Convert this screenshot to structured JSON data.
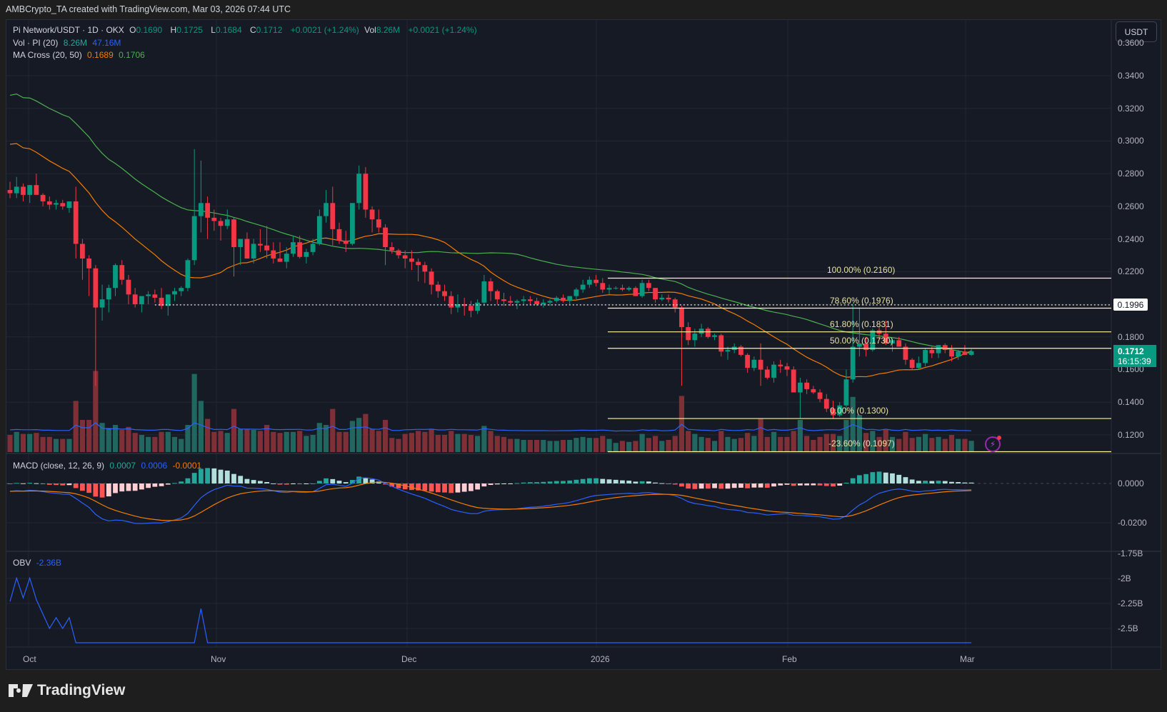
{
  "header": {
    "attribution": "AMBCrypto_TA created with TradingView.com, Mar 03, 2026 07:44 UTC"
  },
  "symbol_legend": {
    "symbol": "Pi Network/USDT · 1D · OKX",
    "o_label": "O",
    "o": "0.1690",
    "h_label": "H",
    "h": "0.1725",
    "l_label": "L",
    "l": "0.1684",
    "c_label": "C",
    "c": "0.1712",
    "change": "+0.0021 (+1.24%)",
    "vol_label": "Vol",
    "vol": "8.26M",
    "vol_change": "+0.0021 (+1.24%)"
  },
  "volume_legend": {
    "label": "Vol · PI (20)",
    "value": "8.26M",
    "ma": "47.16M"
  },
  "ma_legend": {
    "label": "MA Cross (20, 50)",
    "ma20": "0.1689",
    "ma50": "0.1706"
  },
  "macd_legend": {
    "label": "MACD (close, 12, 26, 9)",
    "hist": "0.0007",
    "macd": "0.0006",
    "signal": "-0.0001"
  },
  "obv_legend": {
    "label": "OBV",
    "value": "-2.36B"
  },
  "currency_button": "USDT",
  "price_tags": {
    "dotted_level": "0.1996",
    "last_price": "0.1712",
    "countdown": "16:15:39"
  },
  "price_axis": [
    "0.3600",
    "0.3400",
    "0.3200",
    "0.3000",
    "0.2800",
    "0.2600",
    "0.2400",
    "0.2200",
    "0.1800",
    "0.1600",
    "0.1400",
    "0.1200"
  ],
  "macd_axis": [
    "0.0000",
    "-0.0200"
  ],
  "obv_axis": [
    "-1.75B",
    "-2B",
    "-2.25B",
    "-2.5B"
  ],
  "time_axis": [
    {
      "label": "Oct",
      "x": 40
    },
    {
      "label": "Nov",
      "x": 303
    },
    {
      "label": "Dec",
      "x": 570
    },
    {
      "label": "2026",
      "x": 835
    },
    {
      "label": "Feb",
      "x": 1103
    },
    {
      "label": "Mar",
      "x": 1352
    }
  ],
  "fib_levels": [
    {
      "label": "100.00% (0.2160)",
      "price": 0.216
    },
    {
      "label": "78.60% (0.1976)",
      "price": 0.1976
    },
    {
      "label": "61.80% (0.1831)",
      "price": 0.1831
    },
    {
      "label": "50.00% (0.1730)",
      "price": 0.173
    },
    {
      "label": "0.00% (0.1300)",
      "price": 0.13
    },
    {
      "label": "-23.60% (0.1097)",
      "price": 0.1097
    }
  ],
  "colors": {
    "up": "#089981",
    "down": "#f23645",
    "vol_up": "#22675f",
    "vol_down": "#7f2f36",
    "ma20": "#f57c00",
    "ma50": "#4caf50",
    "macd": "#2962ff",
    "signal": "#f57c00",
    "obv": "#2962ff",
    "fib": "#fff59d",
    "background": "#161a25",
    "grid": "#232733"
  },
  "brand": "TradingView",
  "chart_data": {
    "type": "candlestick",
    "title": "Pi Network/USDT · 1D · OKX",
    "xlabel": "",
    "ylabel": "USDT",
    "x_range": [
      "2025-09-29",
      "2026-03-03"
    ],
    "ylim": [
      0.105,
      0.36
    ],
    "ohlc_start_date": "2025-09-29",
    "ohlc": [
      [
        0.27,
        0.275,
        0.265,
        0.268
      ],
      [
        0.268,
        0.278,
        0.265,
        0.272
      ],
      [
        0.272,
        0.274,
        0.263,
        0.267
      ],
      [
        0.267,
        0.273,
        0.262,
        0.273
      ],
      [
        0.273,
        0.28,
        0.268,
        0.267
      ],
      [
        0.267,
        0.268,
        0.26,
        0.263
      ],
      [
        0.263,
        0.266,
        0.258,
        0.261
      ],
      [
        0.261,
        0.264,
        0.258,
        0.262
      ],
      [
        0.262,
        0.264,
        0.258,
        0.26
      ],
      [
        0.259,
        0.262,
        0.256,
        0.263
      ],
      [
        0.263,
        0.272,
        0.228,
        0.237
      ],
      [
        0.237,
        0.24,
        0.215,
        0.228
      ],
      [
        0.228,
        0.23,
        0.205,
        0.222
      ],
      [
        0.222,
        0.224,
        0.15,
        0.198
      ],
      [
        0.198,
        0.212,
        0.19,
        0.203
      ],
      [
        0.203,
        0.212,
        0.195,
        0.21
      ],
      [
        0.21,
        0.225,
        0.205,
        0.224
      ],
      [
        0.224,
        0.227,
        0.212,
        0.215
      ],
      [
        0.215,
        0.218,
        0.2,
        0.206
      ],
      [
        0.206,
        0.21,
        0.198,
        0.2
      ],
      [
        0.2,
        0.205,
        0.195,
        0.205
      ],
      [
        0.205,
        0.208,
        0.2,
        0.206
      ],
      [
        0.206,
        0.209,
        0.201,
        0.204
      ],
      [
        0.204,
        0.21,
        0.197,
        0.199
      ],
      [
        0.199,
        0.206,
        0.193,
        0.206
      ],
      [
        0.206,
        0.21,
        0.202,
        0.208
      ],
      [
        0.208,
        0.211,
        0.205,
        0.21
      ],
      [
        0.21,
        0.228,
        0.208,
        0.227
      ],
      [
        0.227,
        0.295,
        0.224,
        0.254
      ],
      [
        0.254,
        0.288,
        0.244,
        0.262
      ],
      [
        0.262,
        0.266,
        0.24,
        0.253
      ],
      [
        0.253,
        0.258,
        0.245,
        0.251
      ],
      [
        0.251,
        0.253,
        0.239,
        0.248
      ],
      [
        0.248,
        0.258,
        0.246,
        0.252
      ],
      [
        0.252,
        0.253,
        0.217,
        0.235
      ],
      [
        0.235,
        0.24,
        0.224,
        0.24
      ],
      [
        0.24,
        0.244,
        0.228,
        0.228
      ],
      [
        0.228,
        0.24,
        0.225,
        0.237
      ],
      [
        0.237,
        0.246,
        0.232,
        0.236
      ],
      [
        0.236,
        0.248,
        0.228,
        0.233
      ],
      [
        0.233,
        0.238,
        0.225,
        0.228
      ],
      [
        0.228,
        0.238,
        0.226,
        0.226
      ],
      [
        0.226,
        0.235,
        0.222,
        0.231
      ],
      [
        0.231,
        0.242,
        0.229,
        0.238
      ],
      [
        0.238,
        0.242,
        0.228,
        0.229
      ],
      [
        0.229,
        0.234,
        0.225,
        0.232
      ],
      [
        0.232,
        0.24,
        0.23,
        0.237
      ],
      [
        0.237,
        0.258,
        0.236,
        0.254
      ],
      [
        0.254,
        0.27,
        0.25,
        0.262
      ],
      [
        0.262,
        0.272,
        0.236,
        0.246
      ],
      [
        0.246,
        0.25,
        0.237,
        0.239
      ],
      [
        0.239,
        0.245,
        0.232,
        0.237
      ],
      [
        0.237,
        0.26,
        0.236,
        0.262
      ],
      [
        0.262,
        0.285,
        0.258,
        0.28
      ],
      [
        0.28,
        0.284,
        0.253,
        0.258
      ],
      [
        0.258,
        0.26,
        0.244,
        0.252
      ],
      [
        0.252,
        0.258,
        0.244,
        0.247
      ],
      [
        0.247,
        0.249,
        0.224,
        0.235
      ],
      [
        0.235,
        0.238,
        0.231,
        0.233
      ],
      [
        0.233,
        0.234,
        0.228,
        0.23
      ],
      [
        0.23,
        0.233,
        0.222,
        0.228
      ],
      [
        0.228,
        0.233,
        0.221,
        0.226
      ],
      [
        0.226,
        0.228,
        0.214,
        0.224
      ],
      [
        0.224,
        0.226,
        0.213,
        0.22
      ],
      [
        0.22,
        0.222,
        0.206,
        0.212
      ],
      [
        0.212,
        0.214,
        0.204,
        0.208
      ],
      [
        0.208,
        0.212,
        0.202,
        0.205
      ],
      [
        0.205,
        0.208,
        0.194,
        0.198
      ],
      [
        0.198,
        0.206,
        0.195,
        0.2
      ],
      [
        0.2,
        0.204,
        0.193,
        0.199
      ],
      [
        0.199,
        0.202,
        0.192,
        0.196
      ],
      [
        0.196,
        0.203,
        0.194,
        0.201
      ],
      [
        0.201,
        0.218,
        0.199,
        0.214
      ],
      [
        0.214,
        0.216,
        0.202,
        0.208
      ],
      [
        0.208,
        0.209,
        0.2,
        0.203
      ],
      [
        0.203,
        0.207,
        0.199,
        0.202
      ],
      [
        0.202,
        0.205,
        0.199,
        0.201
      ],
      [
        0.201,
        0.203,
        0.197,
        0.202
      ],
      [
        0.202,
        0.205,
        0.2,
        0.203
      ],
      [
        0.203,
        0.205,
        0.2,
        0.202
      ],
      [
        0.202,
        0.204,
        0.199,
        0.2
      ],
      [
        0.2,
        0.203,
        0.198,
        0.201
      ],
      [
        0.201,
        0.203,
        0.199,
        0.202
      ],
      [
        0.202,
        0.205,
        0.201,
        0.204
      ],
      [
        0.204,
        0.206,
        0.201,
        0.202
      ],
      [
        0.202,
        0.205,
        0.2,
        0.205
      ],
      [
        0.205,
        0.21,
        0.203,
        0.209
      ],
      [
        0.209,
        0.215,
        0.207,
        0.212
      ],
      [
        0.212,
        0.217,
        0.21,
        0.215
      ],
      [
        0.215,
        0.218,
        0.211,
        0.213
      ],
      [
        0.213,
        0.216,
        0.207,
        0.209
      ],
      [
        0.209,
        0.212,
        0.206,
        0.21
      ],
      [
        0.21,
        0.211,
        0.209,
        0.21
      ],
      [
        0.21,
        0.212,
        0.208,
        0.209
      ],
      [
        0.209,
        0.211,
        0.208,
        0.21
      ],
      [
        0.21,
        0.211,
        0.207,
        0.205
      ],
      [
        0.205,
        0.215,
        0.204,
        0.213
      ],
      [
        0.213,
        0.215,
        0.208,
        0.21
      ],
      [
        0.21,
        0.21,
        0.201,
        0.203
      ],
      [
        0.203,
        0.206,
        0.202,
        0.204
      ],
      [
        0.204,
        0.206,
        0.201,
        0.203
      ],
      [
        0.203,
        0.204,
        0.195,
        0.198
      ],
      [
        0.198,
        0.199,
        0.15,
        0.186
      ],
      [
        0.186,
        0.189,
        0.175,
        0.178
      ],
      [
        0.178,
        0.185,
        0.174,
        0.182
      ],
      [
        0.182,
        0.188,
        0.18,
        0.185
      ],
      [
        0.185,
        0.186,
        0.179,
        0.18
      ],
      [
        0.18,
        0.182,
        0.178,
        0.181
      ],
      [
        0.181,
        0.182,
        0.168,
        0.171
      ],
      [
        0.171,
        0.174,
        0.166,
        0.172
      ],
      [
        0.172,
        0.176,
        0.17,
        0.174
      ],
      [
        0.174,
        0.175,
        0.168,
        0.169
      ],
      [
        0.169,
        0.17,
        0.158,
        0.161
      ],
      [
        0.161,
        0.168,
        0.159,
        0.166
      ],
      [
        0.166,
        0.176,
        0.15,
        0.16
      ],
      [
        0.16,
        0.162,
        0.154,
        0.155
      ],
      [
        0.155,
        0.165,
        0.152,
        0.163
      ],
      [
        0.163,
        0.166,
        0.158,
        0.162
      ],
      [
        0.162,
        0.164,
        0.156,
        0.16
      ],
      [
        0.16,
        0.162,
        0.148,
        0.146
      ],
      [
        0.146,
        0.155,
        0.13,
        0.152
      ],
      [
        0.152,
        0.154,
        0.145,
        0.148
      ],
      [
        0.148,
        0.15,
        0.145,
        0.146
      ],
      [
        0.146,
        0.148,
        0.14,
        0.142
      ],
      [
        0.142,
        0.145,
        0.134,
        0.136
      ],
      [
        0.136,
        0.141,
        0.13,
        0.132
      ],
      [
        0.132,
        0.14,
        0.131,
        0.138
      ],
      [
        0.138,
        0.16,
        0.135,
        0.154
      ],
      [
        0.154,
        0.2,
        0.152,
        0.174
      ],
      [
        0.174,
        0.198,
        0.168,
        0.176
      ],
      [
        0.176,
        0.18,
        0.168,
        0.172
      ],
      [
        0.172,
        0.185,
        0.171,
        0.184
      ],
      [
        0.184,
        0.186,
        0.178,
        0.182
      ],
      [
        0.182,
        0.19,
        0.175,
        0.176
      ],
      [
        0.176,
        0.179,
        0.171,
        0.178
      ],
      [
        0.178,
        0.18,
        0.174,
        0.174
      ],
      [
        0.174,
        0.176,
        0.163,
        0.166
      ],
      [
        0.166,
        0.167,
        0.16,
        0.161
      ],
      [
        0.161,
        0.168,
        0.16,
        0.164
      ],
      [
        0.164,
        0.173,
        0.162,
        0.172
      ],
      [
        0.172,
        0.174,
        0.167,
        0.17
      ],
      [
        0.17,
        0.175,
        0.167,
        0.175
      ],
      [
        0.175,
        0.176,
        0.17,
        0.172
      ],
      [
        0.172,
        0.175,
        0.165,
        0.168
      ],
      [
        0.168,
        0.172,
        0.166,
        0.171
      ],
      [
        0.171,
        0.175,
        0.169,
        0.169
      ],
      [
        0.169,
        0.1725,
        0.1684,
        0.1712
      ]
    ],
    "ma20_last": 0.1689,
    "ma50_last": 0.1706,
    "volume_ma20_last": "47.16M",
    "volume_last": "8.26M",
    "macd_last": {
      "histogram": 0.0007,
      "macd": 0.0006,
      "signal": -0.0001
    },
    "obv_last": "-2.36B",
    "fib_retracement": {
      "high": 0.216,
      "low": 0.13,
      "levels": {
        "100%": 0.216,
        "78.6%": 0.1976,
        "61.8%": 0.1831,
        "50%": 0.173,
        "0%": 0.13,
        "-23.6%": 0.1097
      }
    },
    "horizontal_line": 0.1996
  }
}
